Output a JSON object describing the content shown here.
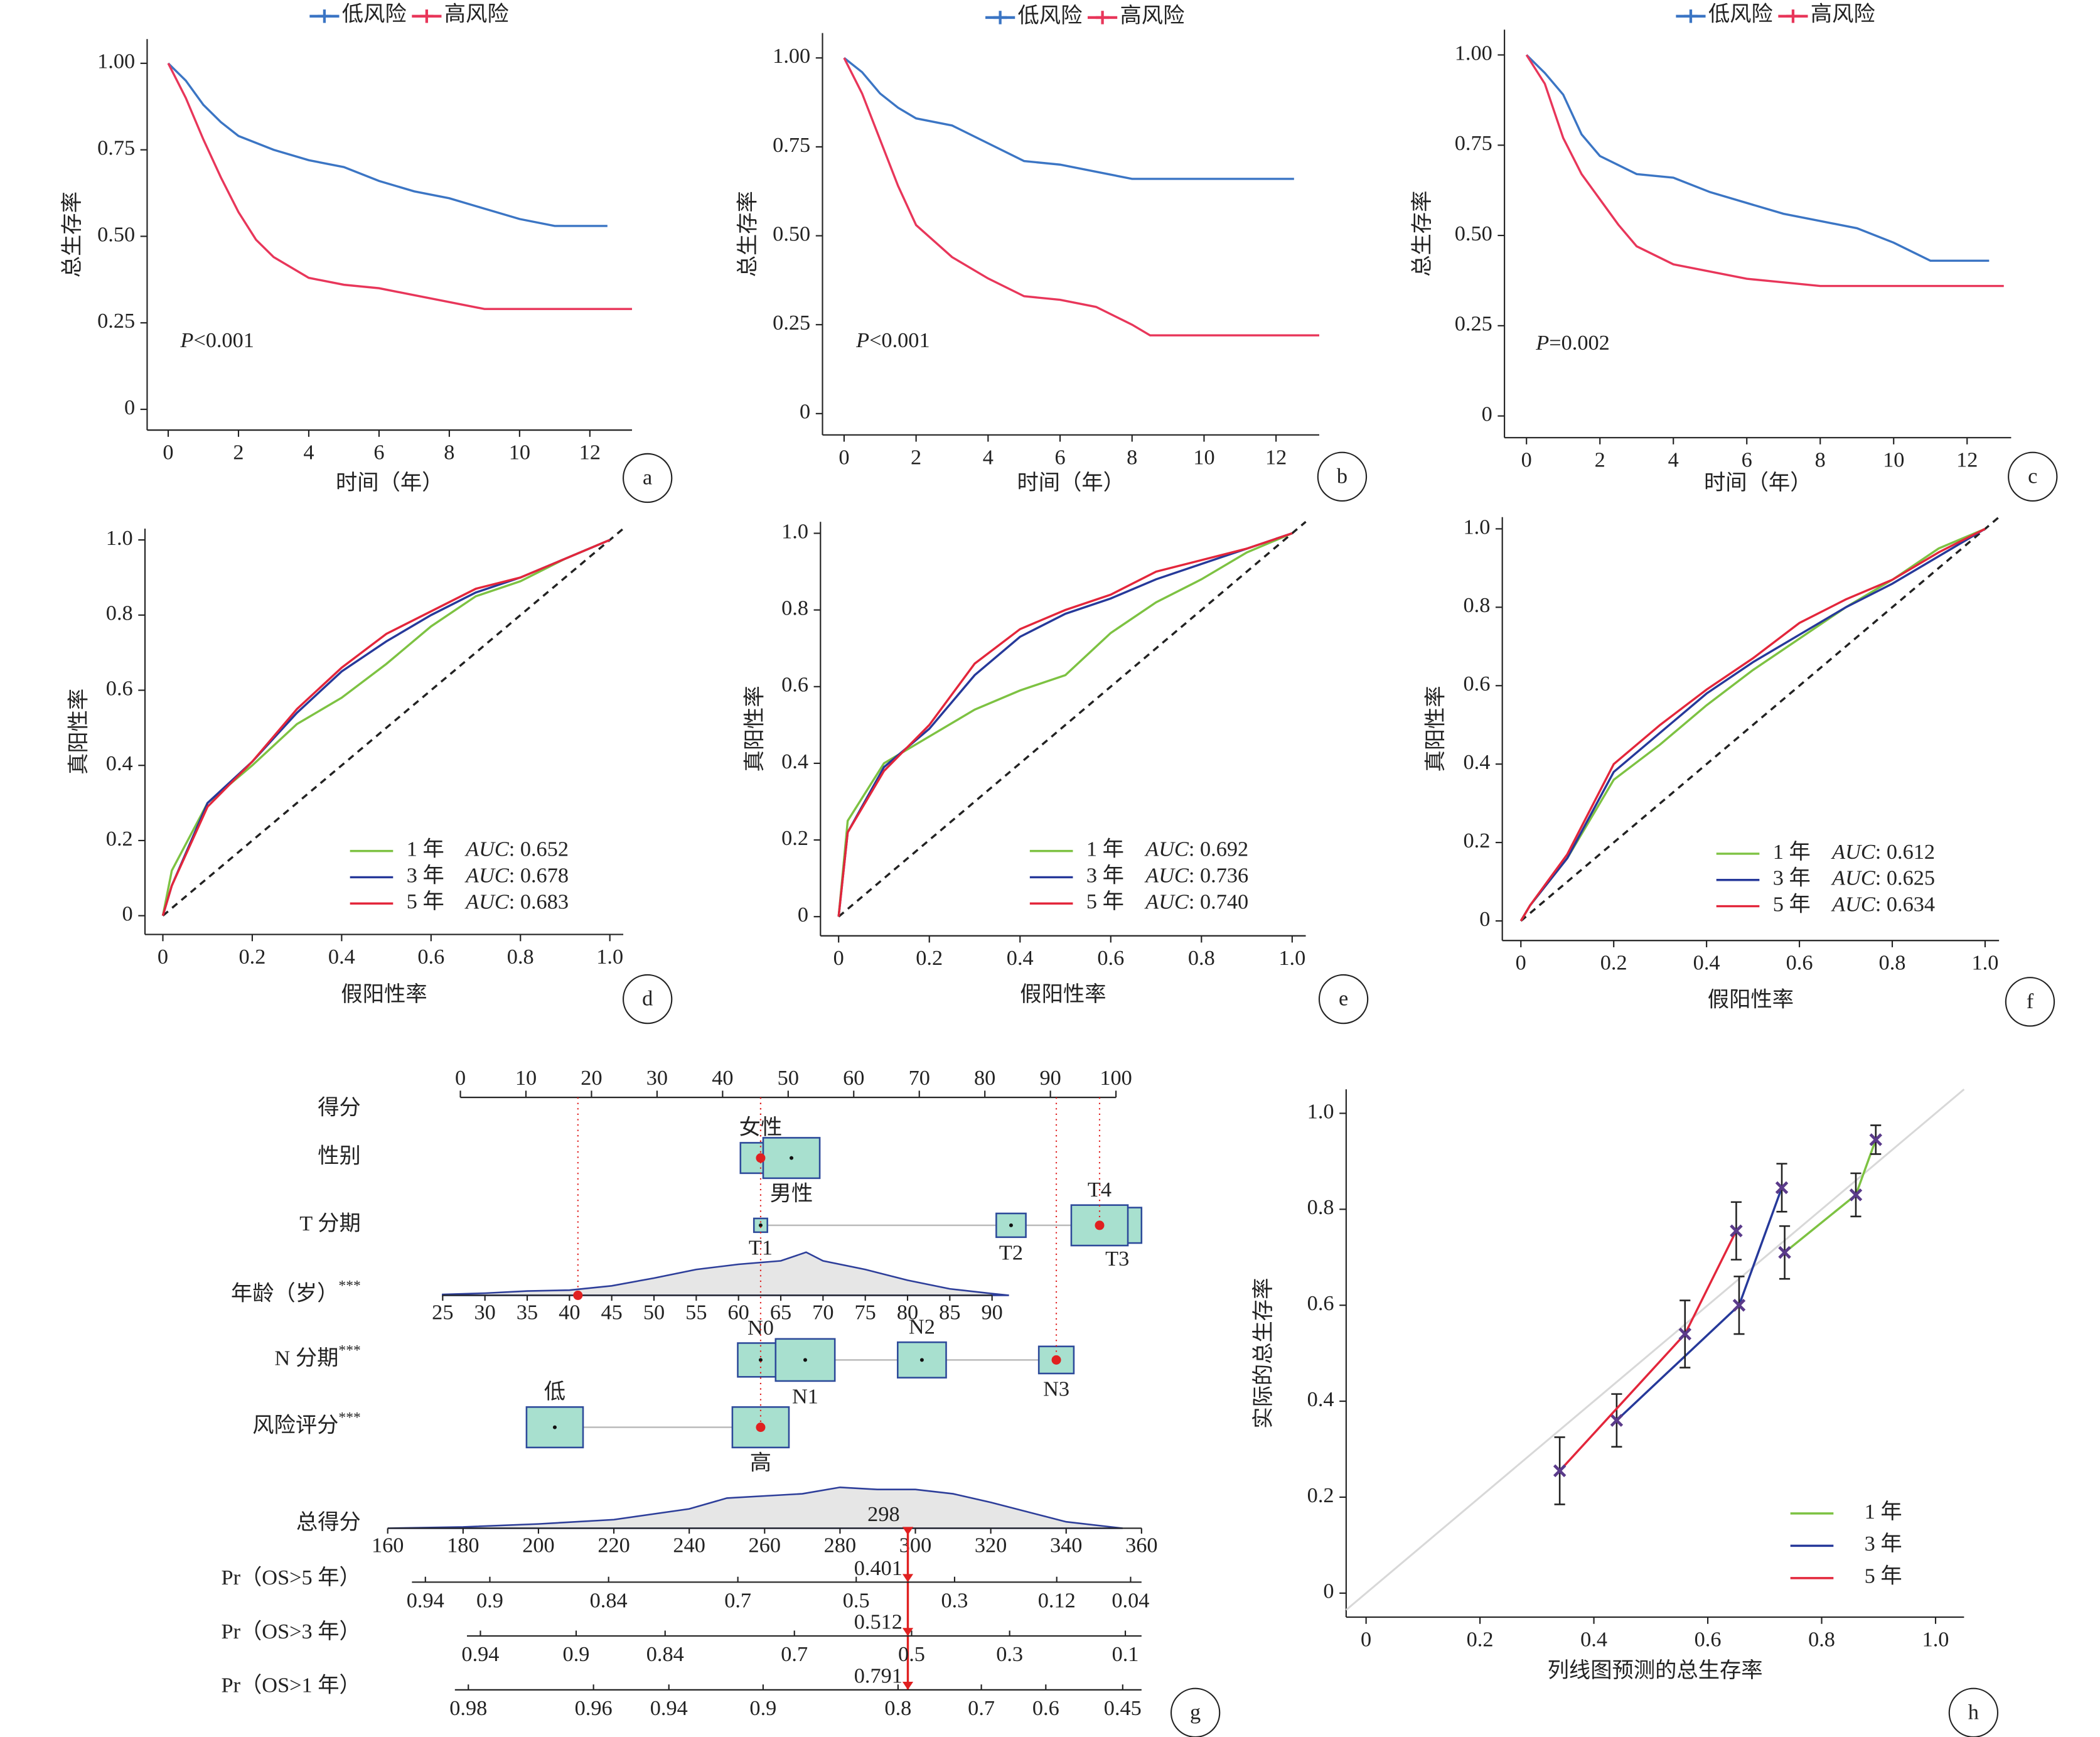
{
  "chart_data": [
    {
      "type": "line",
      "panel": "a",
      "legend": "top",
      "xlabel": "时间（年）",
      "ylabel": "总生存率",
      "annotation_italic": "P",
      "annotation": "<0.001",
      "xlim": [
        -0.6,
        13.2
      ],
      "ylim": [
        -0.06,
        1.07
      ],
      "xticks": [
        0,
        2,
        4,
        6,
        8,
        10,
        12
      ],
      "yticks": [
        0,
        0.25,
        {
          "value": 0.5,
          "label": "0.50"
        },
        0.75,
        {
          "value": 1,
          "label": "1.00"
        }
      ],
      "series": [
        {
          "name": "低风险",
          "color": "#3b75c4",
          "x": [
            0,
            0.5,
            1,
            1.5,
            2,
            3,
            4,
            5,
            6,
            7,
            8,
            9,
            10,
            11,
            12.5
          ],
          "values": [
            1,
            0.95,
            0.88,
            0.83,
            0.79,
            0.75,
            0.72,
            0.7,
            0.66,
            0.63,
            0.61,
            0.58,
            0.55,
            0.53,
            0.53
          ]
        },
        {
          "name": "高风险",
          "color": "#e8365a",
          "x": [
            0,
            0.5,
            1,
            1.5,
            2,
            2.5,
            3,
            4,
            5,
            6,
            7,
            8,
            9,
            13.2
          ],
          "values": [
            1,
            0.9,
            0.78,
            0.67,
            0.57,
            0.49,
            0.44,
            0.38,
            0.36,
            0.35,
            0.33,
            0.31,
            0.29,
            0.29
          ]
        }
      ]
    },
    {
      "type": "line",
      "panel": "b",
      "legend": "top",
      "xlabel": "时间（年）",
      "ylabel": "总生存率",
      "annotation_italic": "P",
      "annotation": "<0.001",
      "xlim": [
        -0.6,
        13.2
      ],
      "ylim": [
        -0.06,
        1.07
      ],
      "xticks": [
        0,
        2,
        4,
        6,
        8,
        10,
        12
      ],
      "yticks": [
        0,
        0.25,
        {
          "value": 0.5,
          "label": "0.50"
        },
        0.75,
        {
          "value": 1,
          "label": "1.00"
        }
      ],
      "series": [
        {
          "name": "低风险",
          "color": "#3b75c4",
          "x": [
            0,
            0.5,
            1,
            1.5,
            2,
            3,
            4,
            5,
            6,
            7,
            8,
            12.5
          ],
          "values": [
            1,
            0.96,
            0.9,
            0.86,
            0.83,
            0.81,
            0.76,
            0.71,
            0.7,
            0.68,
            0.66,
            0.66
          ]
        },
        {
          "name": "高风险",
          "color": "#e8365a",
          "x": [
            0,
            0.5,
            1,
            1.5,
            2,
            3,
            4,
            5,
            6,
            7,
            8,
            8.5,
            13.2
          ],
          "values": [
            1,
            0.9,
            0.77,
            0.64,
            0.53,
            0.44,
            0.38,
            0.33,
            0.32,
            0.3,
            0.25,
            0.22,
            0.22
          ]
        }
      ]
    },
    {
      "type": "line",
      "panel": "c",
      "legend": "top",
      "xlabel": "时间（年）",
      "ylabel": "总生存率",
      "annotation_italic": "P",
      "annotation": "=0.002",
      "xlim": [
        -0.6,
        13.2
      ],
      "ylim": [
        -0.06,
        1.07
      ],
      "xticks": [
        0,
        2,
        4,
        6,
        8,
        10,
        12
      ],
      "yticks": [
        0,
        0.25,
        {
          "value": 0.5,
          "label": "0.50"
        },
        0.75,
        {
          "value": 1,
          "label": "1.00"
        }
      ],
      "series": [
        {
          "name": "低风险",
          "color": "#3b75c4",
          "x": [
            0,
            0.5,
            1,
            1.5,
            2,
            3,
            4,
            5,
            6,
            7,
            8,
            9,
            10,
            11,
            12.6
          ],
          "values": [
            1,
            0.95,
            0.89,
            0.78,
            0.72,
            0.67,
            0.66,
            0.62,
            0.59,
            0.56,
            0.54,
            0.52,
            0.48,
            0.43,
            0.43
          ]
        },
        {
          "name": "高风险",
          "color": "#e8365a",
          "x": [
            0,
            0.5,
            1,
            1.5,
            2,
            2.5,
            3,
            4,
            5,
            6,
            7,
            8,
            13
          ],
          "values": [
            1,
            0.92,
            0.77,
            0.67,
            0.6,
            0.53,
            0.47,
            0.42,
            0.4,
            0.38,
            0.37,
            0.36,
            0.36
          ]
        }
      ]
    },
    {
      "type": "line",
      "panel": "d",
      "legend": "lower right",
      "reference_line": "dashed",
      "xlabel": "假阳性率",
      "ylabel": "真阳性率",
      "auc_name": "AUC",
      "xlim": [
        -0.04,
        1.03
      ],
      "ylim": [
        -0.05,
        1.03
      ],
      "xticks": [
        0,
        0.2,
        0.4,
        0.6,
        0.8,
        {
          "value": 1,
          "label": "1.0"
        }
      ],
      "yticks": [
        0,
        0.2,
        0.4,
        0.6,
        0.8,
        {
          "value": 1,
          "label": "1.0"
        }
      ],
      "x": [
        0,
        0.02,
        0.1,
        0.2,
        0.3,
        0.4,
        0.5,
        0.6,
        0.7,
        0.8,
        0.9,
        1
      ],
      "series": [
        {
          "name": "1 年",
          "color": "#7dc242",
          "auc": 0.652,
          "auc_label": ": 0.652",
          "values": [
            0,
            0.12,
            0.3,
            0.4,
            0.51,
            0.58,
            0.67,
            0.77,
            0.85,
            0.89,
            0.95,
            1
          ]
        },
        {
          "name": "3 年",
          "color": "#26399a",
          "auc": 0.678,
          "auc_label": ": 0.678",
          "values": [
            0,
            0.08,
            0.3,
            0.41,
            0.54,
            0.65,
            0.73,
            0.8,
            0.86,
            0.9,
            0.95,
            1
          ]
        },
        {
          "name": "5 年",
          "color": "#e3263b",
          "auc": 0.683,
          "auc_label": ": 0.683",
          "values": [
            0,
            0.08,
            0.29,
            0.41,
            0.55,
            0.66,
            0.75,
            0.81,
            0.87,
            0.9,
            0.95,
            1
          ]
        }
      ]
    },
    {
      "type": "line",
      "panel": "e",
      "legend": "lower right",
      "reference_line": "dashed",
      "xlabel": "假阳性率",
      "ylabel": "真阳性率",
      "auc_name": "AUC",
      "xlim": [
        -0.04,
        1.03
      ],
      "ylim": [
        -0.05,
        1.03
      ],
      "xticks": [
        0,
        0.2,
        0.4,
        0.6,
        0.8,
        {
          "value": 1,
          "label": "1.0"
        }
      ],
      "yticks": [
        0,
        0.2,
        0.4,
        0.6,
        0.8,
        {
          "value": 1,
          "label": "1.0"
        }
      ],
      "x": [
        0,
        0.02,
        0.1,
        0.2,
        0.3,
        0.4,
        0.5,
        0.6,
        0.7,
        0.8,
        0.9,
        1
      ],
      "series": [
        {
          "name": "1 年",
          "color": "#7dc242",
          "auc": 0.692,
          "auc_label": ": 0.692",
          "values": [
            0,
            0.25,
            0.4,
            0.47,
            0.54,
            0.59,
            0.63,
            0.74,
            0.82,
            0.88,
            0.95,
            1
          ]
        },
        {
          "name": "3 年",
          "color": "#26399a",
          "auc": 0.736,
          "auc_label": ": 0.736",
          "values": [
            0,
            0.22,
            0.39,
            0.49,
            0.63,
            0.73,
            0.79,
            0.83,
            0.88,
            0.92,
            0.96,
            1
          ]
        },
        {
          "name": "5 年",
          "color": "#e3263b",
          "auc": 0.74,
          "auc_label": ": 0.740",
          "values": [
            0,
            0.22,
            0.38,
            0.5,
            0.66,
            0.75,
            0.8,
            0.84,
            0.9,
            0.93,
            0.96,
            1
          ]
        }
      ]
    },
    {
      "type": "line",
      "panel": "f",
      "legend": "lower right",
      "reference_line": "dashed",
      "xlabel": "假阳性率",
      "ylabel": "真阳性率",
      "auc_name": "AUC",
      "xlim": [
        -0.04,
        1.03
      ],
      "ylim": [
        -0.05,
        1.03
      ],
      "xticks": [
        0,
        0.2,
        0.4,
        0.6,
        0.8,
        {
          "value": 1,
          "label": "1.0"
        }
      ],
      "yticks": [
        0,
        0.2,
        0.4,
        0.6,
        0.8,
        {
          "value": 1,
          "label": "1.0"
        }
      ],
      "x": [
        0,
        0.02,
        0.1,
        0.2,
        0.3,
        0.4,
        0.5,
        0.6,
        0.7,
        0.8,
        0.9,
        1
      ],
      "series": [
        {
          "name": "1 年",
          "color": "#7dc242",
          "auc": 0.612,
          "auc_label": ": 0.612",
          "values": [
            0,
            0.04,
            0.16,
            0.36,
            0.45,
            0.55,
            0.64,
            0.72,
            0.8,
            0.87,
            0.95,
            1
          ]
        },
        {
          "name": "3 年",
          "color": "#26399a",
          "auc": 0.625,
          "auc_label": ": 0.625",
          "values": [
            0,
            0.04,
            0.16,
            0.38,
            0.48,
            0.58,
            0.66,
            0.73,
            0.8,
            0.86,
            0.93,
            1
          ]
        },
        {
          "name": "5 年",
          "color": "#e3263b",
          "auc": 0.634,
          "auc_label": ": 0.634",
          "values": [
            0,
            0.04,
            0.17,
            0.4,
            0.5,
            0.59,
            0.67,
            0.76,
            0.82,
            0.87,
            0.94,
            1
          ]
        }
      ]
    },
    {
      "type": "nomogram",
      "panel": "g",
      "points_axis": {
        "label": "得分",
        "lim": [
          0,
          100
        ],
        "ticks": [
          0,
          10,
          20,
          30,
          40,
          50,
          60,
          70,
          80,
          90,
          100
        ]
      },
      "variables": [
        {
          "label": "性别",
          "selected": 0,
          "levels": [
            {
              "name": "女性",
              "points": 45.8,
              "size": 30
            },
            {
              "name": "男性",
              "points": 50.5,
              "size": 42
            }
          ]
        },
        {
          "label": "T 分期",
          "selected": 3,
          "levels": [
            {
              "name": "T1",
              "points": 45.8,
              "size": 10
            },
            {
              "name": "T2",
              "points": 84,
              "size": 22
            },
            {
              "name": "T3",
              "points": 100.2,
              "size": 36
            },
            {
              "name": "T4",
              "points": 97.5,
              "size": 42
            }
          ]
        },
        {
          "label": "年龄（岁）",
          "sig": "***",
          "selected": 41,
          "lim": [
            25,
            90
          ],
          "lim_points": [
            -2.7,
            81.1
          ],
          "ticks": [
            25,
            30,
            35,
            40,
            45,
            50,
            55,
            60,
            65,
            70,
            75,
            80,
            85,
            90
          ],
          "density": {
            "x": [
              25,
              30,
              35,
              40,
              45,
              50,
              55,
              60,
              65,
              68,
              70,
              75,
              80,
              85,
              90,
              92
            ],
            "values": [
              0.02,
              0.05,
              0.1,
              0.12,
              0.22,
              0.4,
              0.6,
              0.72,
              0.8,
              1,
              0.8,
              0.6,
              0.35,
              0.15,
              0.04,
              0
            ]
          }
        },
        {
          "label": "N 分期",
          "sig": "***",
          "selected": 3,
          "levels": [
            {
              "name": "N0",
              "points": 45.8,
              "size": 34
            },
            {
              "name": "N1",
              "points": 52.6,
              "size": 44
            },
            {
              "name": "N2",
              "points": 70.4,
              "size": 36
            },
            {
              "name": "N3",
              "points": 90.9,
              "size": 26
            }
          ]
        },
        {
          "label": "风险评分",
          "sig": "***",
          "selected": 1,
          "levels": [
            {
              "name": "低",
              "points": 14.4,
              "size": 42
            },
            {
              "name": "高",
              "points": 45.8,
              "size": 42
            }
          ]
        }
      ],
      "total_axis": {
        "label": "总得分",
        "lim": [
          160,
          360
        ],
        "ticks": [
          160,
          180,
          200,
          220,
          240,
          260,
          280,
          300,
          320,
          340,
          360
        ],
        "selected": 298,
        "density": {
          "x": [
            160,
            180,
            200,
            220,
            240,
            250,
            260,
            270,
            280,
            290,
            300,
            310,
            320,
            340,
            355
          ],
          "values": [
            0,
            0.03,
            0.1,
            0.2,
            0.45,
            0.7,
            0.75,
            0.8,
            0.95,
            0.9,
            0.9,
            0.8,
            0.6,
            0.15,
            0
          ]
        }
      },
      "probability_axes": [
        {
          "label": "Pr（OS>5 年）",
          "value": 0.401,
          "ticks": [
            0.94,
            0.9,
            0.84,
            0.7,
            0.5,
            0.3,
            0.12,
            0.04
          ],
          "tick_scores": [
            170,
            187.1,
            218.6,
            252.9,
            284.3,
            310.4,
            337.5,
            357.1
          ]
        },
        {
          "label": "Pr（OS>3 年）",
          "value": 0.512,
          "ticks": [
            0.94,
            0.9,
            0.84,
            0.7,
            0.5,
            0.3,
            0.1
          ],
          "tick_scores": [
            184.6,
            210,
            233.6,
            267.9,
            299,
            325,
            355.7
          ]
        },
        {
          "label": "Pr（OS>1 年）",
          "value": 0.791,
          "ticks": [
            0.98,
            0.96,
            0.94,
            0.9,
            0.8,
            0.7,
            0.6,
            0.45
          ],
          "tick_scores": [
            181.4,
            214.6,
            234.6,
            259.6,
            295.4,
            317.5,
            334.6,
            355
          ]
        }
      ]
    },
    {
      "type": "line",
      "panel": "h",
      "legend": "lower right",
      "reference_line": "solid",
      "xlabel": "列线图预测的总生存率",
      "ylabel": "实际的总生存率",
      "xlim": [
        -0.035,
        1.05
      ],
      "ylim": [
        -0.05,
        1.05
      ],
      "xticks": [
        0,
        0.2,
        0.4,
        0.6,
        0.8,
        {
          "value": 1,
          "label": "1.0"
        }
      ],
      "yticks": [
        0,
        0.2,
        0.4,
        0.6,
        0.8,
        {
          "value": 1,
          "label": "1.0"
        }
      ],
      "series": [
        {
          "name": "1 年",
          "color": "#7dc242",
          "x": [
            0.735,
            0.86,
            0.895
          ],
          "values": [
            0.71,
            0.83,
            0.945
          ],
          "errors": [
            0.055,
            0.045,
            0.03
          ]
        },
        {
          "name": "3 年",
          "color": "#26399a",
          "x": [
            0.44,
            0.655,
            0.73
          ],
          "values": [
            0.36,
            0.6,
            0.845
          ],
          "errors": [
            0.055,
            0.06,
            0.05
          ]
        },
        {
          "name": "5 年",
          "color": "#e3263b",
          "x": [
            0.34,
            0.56,
            0.65
          ],
          "values": [
            0.255,
            0.54,
            0.755
          ],
          "errors": [
            0.07,
            0.07,
            0.06
          ]
        }
      ]
    }
  ]
}
